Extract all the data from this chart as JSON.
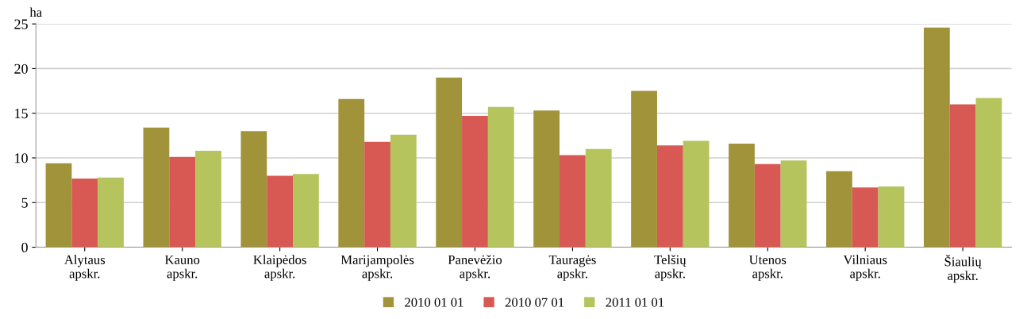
{
  "chart_data": {
    "type": "bar",
    "ylabel": "ha",
    "categories": [
      "Alytaus\napskr.",
      "Kauno\napskr.",
      "Klaipėdos\napskr.",
      "Marijampolės\napskr.",
      "Panevėžio\napskr.",
      "Tauragės\napskr.",
      "Telšių\napskr.",
      "Utenos\napskr.",
      "Vilniaus\napskr.",
      "Šiaulių\napskr."
    ],
    "series": [
      {
        "name": "2010 01 01",
        "color": "#a09339",
        "values": [
          9.4,
          13.4,
          13.0,
          16.6,
          19.0,
          15.3,
          17.5,
          11.6,
          8.5,
          24.6
        ]
      },
      {
        "name": "2010 07 01",
        "color": "#d85853",
        "values": [
          7.7,
          10.1,
          8.0,
          11.8,
          14.7,
          10.3,
          11.4,
          9.3,
          6.7,
          16.0
        ]
      },
      {
        "name": "2011 01 01",
        "color": "#b5c45c",
        "values": [
          7.8,
          10.8,
          8.2,
          12.6,
          15.7,
          11.0,
          11.9,
          9.7,
          6.8,
          16.7
        ]
      }
    ],
    "ylim": [
      0,
      25
    ],
    "yticks": [
      0,
      5,
      10,
      15,
      20,
      25
    ],
    "grid": "y",
    "legend": "bottom"
  }
}
